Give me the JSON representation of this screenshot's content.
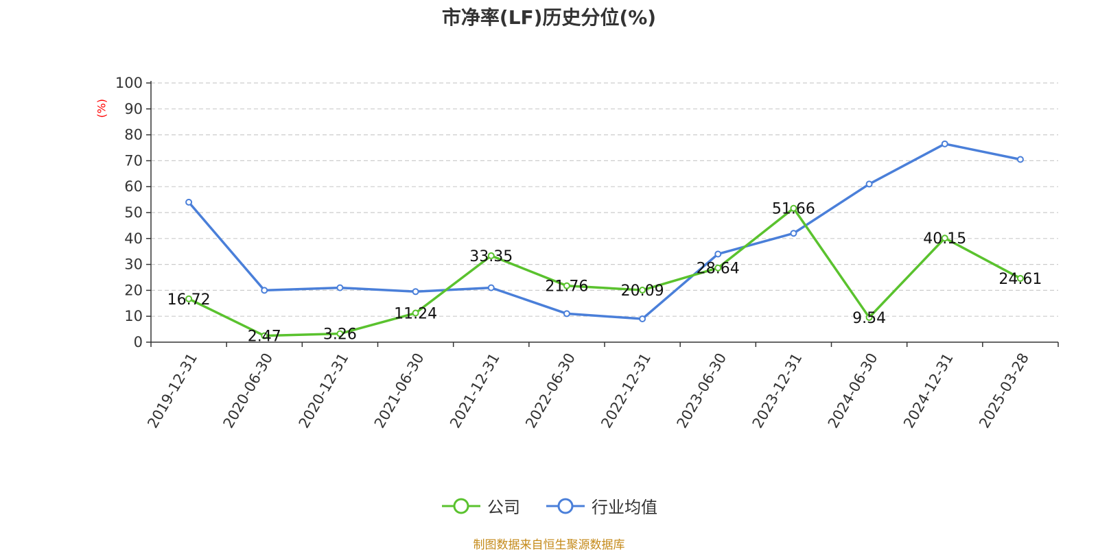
{
  "chart_data": {
    "type": "line",
    "title": "市净率(LF)历史分位(%)",
    "ylabel": "(%)",
    "ylim": [
      0,
      100
    ],
    "yticks": [
      0,
      10,
      20,
      30,
      40,
      50,
      60,
      70,
      80,
      90,
      100
    ],
    "grid": true,
    "legend_position": "bottom",
    "categories": [
      "2019-12-31",
      "2020-06-30",
      "2020-12-31",
      "2021-06-30",
      "2021-12-31",
      "2022-06-30",
      "2022-12-31",
      "2023-06-30",
      "2023-12-31",
      "2024-06-30",
      "2024-12-31",
      "2025-03-28"
    ],
    "series": [
      {
        "name": "公司",
        "color": "#5ac22e",
        "values": [
          16.72,
          2.47,
          3.26,
          11.24,
          33.35,
          21.76,
          20.09,
          28.64,
          51.66,
          9.54,
          40.15,
          24.61
        ],
        "labels": [
          "16.72",
          "2.47",
          "3.26",
          "11.24",
          "33.35",
          "21.76",
          "20.09",
          "28.64",
          "51.66",
          "9.54",
          "40.15",
          "24.61"
        ]
      },
      {
        "name": "行业均值",
        "color": "#4a7fd9",
        "values": [
          54,
          20,
          21,
          19.5,
          21,
          11,
          9,
          34,
          42,
          61,
          76.5,
          70.5
        ]
      }
    ]
  },
  "source_note": "制图数据来自恒生聚源数据库"
}
